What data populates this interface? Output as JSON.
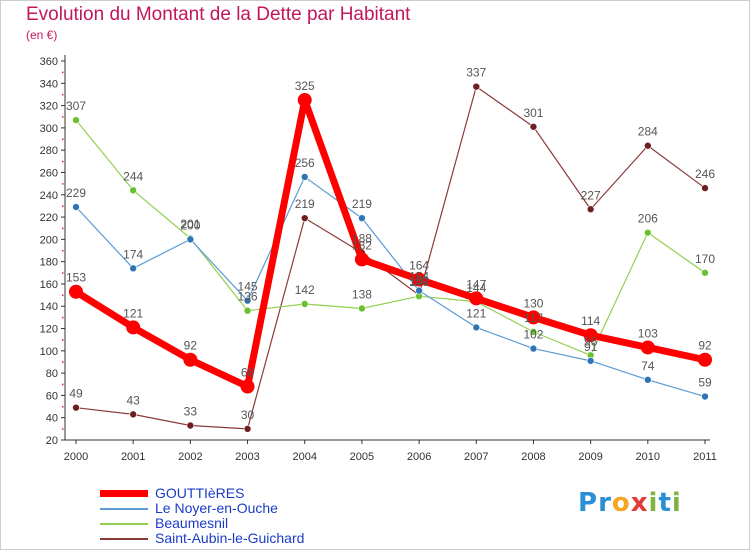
{
  "header": {
    "title": "Evolution du Montant de la Dette par Habitant",
    "subtitle": "(en €)"
  },
  "logo": {
    "text": "Proxiti",
    "letters": [
      "P",
      "r",
      "o",
      "x",
      "i",
      "t",
      "i"
    ],
    "colors": [
      "#2b8fd6",
      "#2b8fd6",
      "#f5a623",
      "#e53935",
      "#7cb342",
      "#2b8fd6",
      "#7cb342"
    ]
  },
  "chart_data": {
    "type": "line",
    "title": "Evolution du Montant de la Dette par Habitant",
    "subtitle": "(en €)",
    "xlabel": "",
    "ylabel": "",
    "ylim": [
      20,
      360
    ],
    "yticks": [
      20,
      40,
      60,
      80,
      100,
      120,
      140,
      160,
      180,
      200,
      220,
      240,
      260,
      280,
      300,
      320,
      340,
      360
    ],
    "grid": false,
    "legend_position": "bottom-left",
    "x": [
      "2000",
      "2001",
      "2002",
      "2003",
      "2004",
      "2005",
      "2006",
      "2007",
      "2008",
      "2009",
      "2010",
      "2011"
    ],
    "series": [
      {
        "name": "GOUTTIèRES",
        "color": "#ff0000",
        "marker": "#ff0000",
        "width": 7,
        "markerRadius": 7,
        "values": [
          153,
          121,
          92,
          68,
          325,
          182,
          164,
          147,
          130,
          114,
          103,
          92
        ]
      },
      {
        "name": "Le Noyer-en-Ouche",
        "color": "#5b9bd5",
        "marker": "#2e75b6",
        "width": 1.2,
        "markerRadius": 3.5,
        "values": [
          229,
          174,
          200,
          145,
          256,
          219,
          154,
          121,
          102,
          91,
          74,
          59
        ]
      },
      {
        "name": "Beaumesnil",
        "color": "#92d050",
        "marker": "#6cc030",
        "width": 1.2,
        "markerRadius": 3.5,
        "values": [
          307,
          244,
          201,
          136,
          142,
          138,
          149,
          144,
          117,
          96,
          206,
          170
        ]
      },
      {
        "name": "Saint-Aubin-le-Guichard",
        "color": "#8b3a3a",
        "marker": "#6e1f1f",
        "width": 1.2,
        "markerRadius": 3.5,
        "values": [
          49,
          43,
          33,
          30,
          219,
          188,
          150,
          337,
          301,
          227,
          284,
          246
        ]
      }
    ]
  }
}
